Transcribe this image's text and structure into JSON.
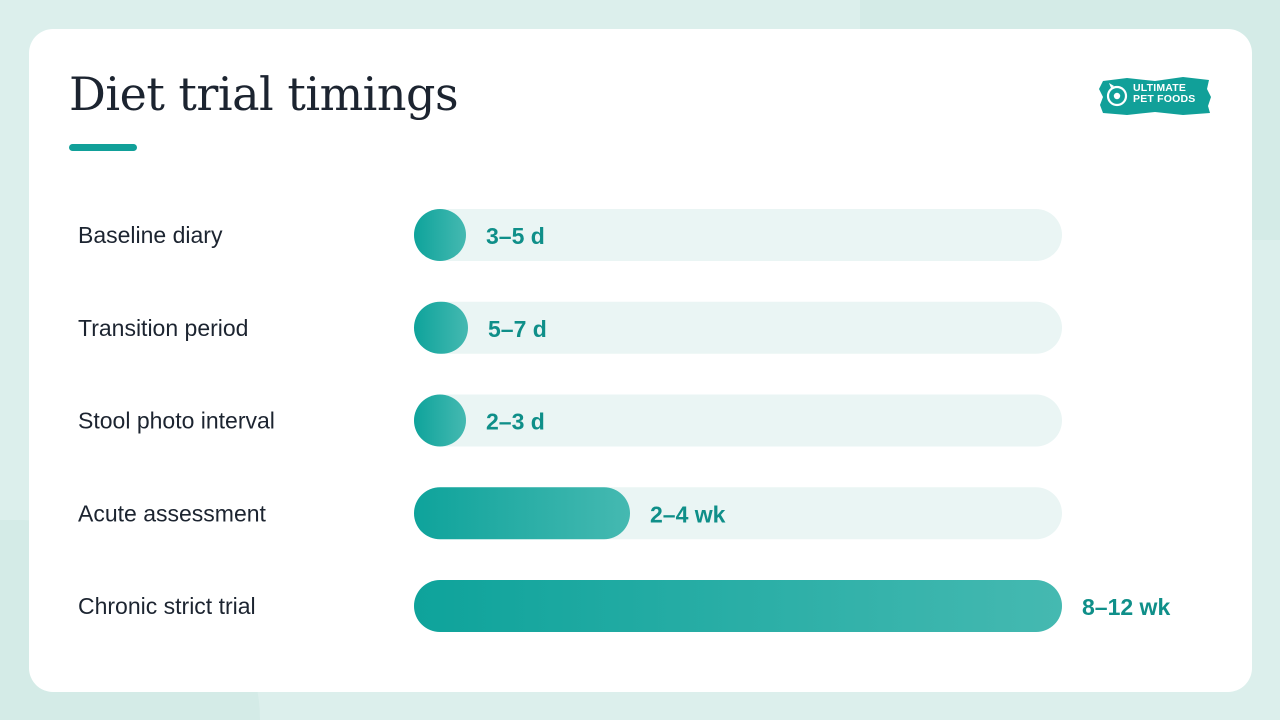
{
  "header": {
    "title": "Diet trial timings",
    "logo_line1": "ULTIMATE",
    "logo_line2": "PET FOODS"
  },
  "colors": {
    "accent": "#11a099",
    "accent_light": "#45b9b1",
    "track": "#eaf5f4",
    "label_text": "#1c2430",
    "value_text": "#0f8f89"
  },
  "chart_data": {
    "type": "bar",
    "orientation": "horizontal",
    "unit": "days",
    "categories": [
      "Baseline diary",
      "Transition period",
      "Stool photo interval",
      "Acute assessment",
      "Chronic strict trial"
    ],
    "value_labels": [
      "3–5 d",
      "5–7 d",
      "2–3 d",
      "2–4 wk",
      "8–12 wk"
    ],
    "values": [
      5,
      7,
      3,
      28,
      84
    ],
    "xlim": [
      0,
      84
    ],
    "grid": false,
    "legend": "none"
  }
}
